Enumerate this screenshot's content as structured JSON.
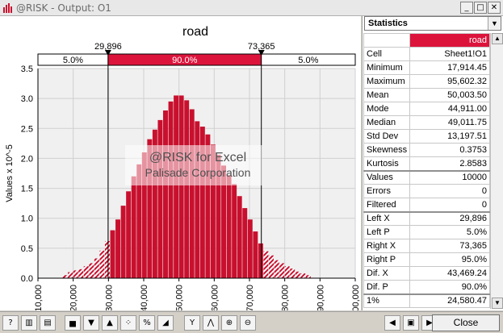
{
  "window": {
    "title": "@RISK - Output: O1",
    "minimize_label": "_",
    "maximize_label": "□",
    "close_label": "✕"
  },
  "chart_data": {
    "type": "bar",
    "title": "road",
    "ylabel": "Values x 10^-5",
    "xlabel": "",
    "ylim": [
      0,
      3.5
    ],
    "xlim": [
      10000,
      100000
    ],
    "y_ticks": [
      "0.0",
      "0.5",
      "1.0",
      "1.5",
      "2.0",
      "2.5",
      "3.0",
      "3.5"
    ],
    "x_ticks": [
      "10,000",
      "20,000",
      "30,000",
      "40,000",
      "50,000",
      "60,000",
      "70,000",
      "80,000",
      "90,000",
      "100,000"
    ],
    "bin_width": 1500,
    "bins_start": 17000,
    "values": [
      0.05,
      0.1,
      0.13,
      0.15,
      0.2,
      0.25,
      0.33,
      0.46,
      0.62,
      0.8,
      0.98,
      1.21,
      1.45,
      1.7,
      1.9,
      2.1,
      2.32,
      2.48,
      2.64,
      2.8,
      2.95,
      3.05,
      3.05,
      2.97,
      2.82,
      2.62,
      2.53,
      2.4,
      2.23,
      2.06,
      1.88,
      1.72,
      1.57,
      1.37,
      1.17,
      0.98,
      0.78,
      0.58,
      0.45,
      0.38,
      0.3,
      0.25,
      0.2,
      0.16,
      0.11,
      0.08,
      0.05
    ],
    "left_x": 29896,
    "right_x": 73365,
    "left_x_label": "29,896",
    "right_x_label": "73,365",
    "band_left_label": "5.0%",
    "band_mid_label": "90.0%",
    "band_right_label": "5.0%",
    "colors": {
      "bar": "#c8102e",
      "band": "#dc143c",
      "plot_bg": "#f0f0f0"
    }
  },
  "watermark": {
    "line1": "@RISK for Excel",
    "line2": "Palisade Corporation"
  },
  "stats": {
    "header": "Statistics",
    "column_title": "road",
    "rows": [
      {
        "k": "Cell",
        "v": "Sheet1!O1"
      },
      {
        "k": "Minimum",
        "v": "17,914.45"
      },
      {
        "k": "Maximum",
        "v": "95,602.32"
      },
      {
        "k": "Mean",
        "v": "50,003.50"
      },
      {
        "k": "Mode",
        "v": "44,911.00"
      },
      {
        "k": "Median",
        "v": "49,011.75"
      },
      {
        "k": "Std Dev",
        "v": "13,197.51"
      },
      {
        "k": "Skewness",
        "v": "0.3753"
      },
      {
        "k": "Kurtosis",
        "v": "2.8583"
      },
      {
        "k": "Values",
        "v": "10000",
        "sep": true
      },
      {
        "k": "Errors",
        "v": "0"
      },
      {
        "k": "Filtered",
        "v": "0"
      },
      {
        "k": "Left X",
        "v": "29,896",
        "sep": true
      },
      {
        "k": "Left P",
        "v": "5.0%"
      },
      {
        "k": "Right X",
        "v": "73,365"
      },
      {
        "k": "Right P",
        "v": "95.0%"
      },
      {
        "k": "Dif. X",
        "v": "43,469.24"
      },
      {
        "k": "Dif. P",
        "v": "90.0%"
      },
      {
        "k": "1%",
        "v": "24,580.47",
        "sep": true
      }
    ]
  },
  "toolbar": {
    "close_label": "Close"
  }
}
